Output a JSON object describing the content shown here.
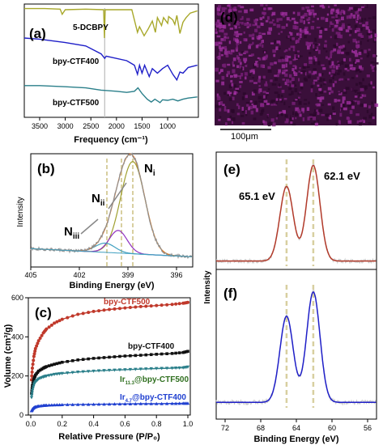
{
  "panel_labels": {
    "a": "(a)",
    "b": "(b)",
    "c": "(c)",
    "d": "(d)",
    "e": "(e)",
    "f": "(f)"
  },
  "d_scale_label": "100μm",
  "colors": {
    "olive": "#a8a82a",
    "blue": "#1f1fc8",
    "teal": "#2a7f8a",
    "red": "#b23a2a",
    "map_dark": "#3a0f3a",
    "map_bright": "#a030a0"
  },
  "chart_data": [
    {
      "id": "a",
      "type": "line",
      "xlabel": "Frequency (cm⁻¹)",
      "ylabel": "",
      "xlim": [
        3800,
        400
      ],
      "x_ticks": [
        3500,
        3000,
        2500,
        2000,
        1500,
        1000
      ],
      "marker_line_x": 2230,
      "series": [
        {
          "name": "5-DCBPY",
          "color": "#a8a82a",
          "x": [
            3800,
            3400,
            3100,
            3060,
            3000,
            2600,
            2250,
            2235,
            2220,
            1700,
            1590,
            1550,
            1460,
            1380,
            1300,
            1240,
            1200,
            1120,
            1080,
            1000,
            980,
            900,
            860,
            820,
            760,
            700,
            640,
            560,
            420
          ],
          "y": [
            9.6,
            9.6,
            9.55,
            9.1,
            9.5,
            9.55,
            9.5,
            7.0,
            9.5,
            9.5,
            7.5,
            8.0,
            7.2,
            7.8,
            8.5,
            7.5,
            8.8,
            8.1,
            8.8,
            8.3,
            8.9,
            8.6,
            8.2,
            9.0,
            7.4,
            8.4,
            8.8,
            9.2,
            9.4
          ]
        },
        {
          "name": "bpy-CTF400",
          "color": "#1f1fc8",
          "x": [
            3800,
            3500,
            3000,
            2600,
            2300,
            2230,
            2200,
            1800,
            1650,
            1590,
            1550,
            1500,
            1450,
            1360,
            1300,
            1200,
            1100,
            1000,
            900,
            820,
            760,
            700,
            600,
            420
          ],
          "y": [
            7.0,
            6.9,
            6.6,
            6.3,
            5.6,
            5.2,
            5.4,
            5.0,
            4.6,
            3.8,
            4.6,
            3.9,
            4.6,
            3.6,
            4.3,
            3.9,
            4.3,
            4.6,
            3.8,
            3.3,
            4.0,
            3.9,
            4.4,
            4.6
          ]
        },
        {
          "name": "bpy-CTF500",
          "color": "#2a7f8a",
          "x": [
            3800,
            3500,
            3000,
            2600,
            2300,
            2000,
            1800,
            1650,
            1580,
            1500,
            1400,
            1320,
            1250,
            1150,
            1100,
            1000,
            900,
            800,
            700,
            600,
            420
          ],
          "y": [
            2.8,
            2.8,
            2.7,
            2.6,
            2.4,
            2.3,
            2.2,
            2.3,
            2.6,
            2.1,
            1.6,
            1.35,
            1.6,
            1.3,
            1.55,
            1.5,
            1.6,
            1.45,
            1.6,
            1.7,
            1.8
          ]
        }
      ]
    },
    {
      "id": "b",
      "type": "line",
      "xlabel": "Binding Energy (eV)",
      "ylabel": "Intensity",
      "xlim": [
        405,
        395
      ],
      "ylim": [
        0,
        1.05
      ],
      "x_ticks": [
        405,
        402,
        399,
        396
      ],
      "dashed_x": [
        400.3,
        399.4,
        398.7
      ],
      "peak_labels": [
        {
          "main": "N",
          "sub": "i"
        },
        {
          "main": "N",
          "sub": "ii"
        },
        {
          "main": "N",
          "sub": "iii"
        }
      ],
      "series": [
        {
          "name": "N_i",
          "color": "#a0a030",
          "center": 398.7,
          "amplitude": 0.9,
          "width": 0.75
        },
        {
          "name": "N_ii",
          "color": "#9030c0",
          "center": 399.6,
          "amplitude": 0.22,
          "width": 0.55
        },
        {
          "name": "N_iii",
          "color": "#40a0c0",
          "center": 400.4,
          "amplitude": 0.09,
          "width": 0.6
        },
        {
          "name": "fit",
          "color": "#e07020",
          "sum": true
        },
        {
          "name": "raw",
          "color": "#909090",
          "sum": true,
          "noise": true
        }
      ]
    },
    {
      "id": "c",
      "type": "scatter",
      "xlabel": "Relative Pressure (P/P₀)",
      "ylabel": "Volume (cm³/g)",
      "xlim": [
        0,
        1.0
      ],
      "ylim": [
        0,
        600
      ],
      "x_ticks": [
        0.0,
        0.2,
        0.4,
        0.6,
        0.8,
        1.0
      ],
      "y_ticks": [
        0,
        200,
        400,
        600
      ],
      "series": [
        {
          "name": "bpy-CTF500",
          "label": {
            "main": "bpy-CTF500",
            "sub": ""
          },
          "color": "#c0392b",
          "label_color": "#c0392b",
          "x": [
            0.005,
            0.01,
            0.02,
            0.03,
            0.05,
            0.08,
            0.1,
            0.15,
            0.2,
            0.3,
            0.4,
            0.5,
            0.6,
            0.7,
            0.8,
            0.9,
            0.97,
            1.0
          ],
          "y": [
            180,
            240,
            300,
            340,
            380,
            420,
            440,
            470,
            490,
            515,
            530,
            540,
            548,
            555,
            560,
            566,
            572,
            576
          ]
        },
        {
          "name": "bpy-CTF400",
          "label": {
            "main": "bpy-CTF400",
            "sub": ""
          },
          "color": "#111111",
          "label_color": "#111111",
          "x": [
            0.005,
            0.01,
            0.02,
            0.03,
            0.05,
            0.08,
            0.1,
            0.15,
            0.2,
            0.3,
            0.4,
            0.5,
            0.6,
            0.7,
            0.8,
            0.9,
            0.97,
            1.0
          ],
          "y": [
            110,
            150,
            185,
            205,
            225,
            240,
            248,
            260,
            270,
            282,
            290,
            296,
            302,
            306,
            311,
            315,
            320,
            326
          ]
        },
        {
          "name": "Ir11.3@bpy-CTF500",
          "label": {
            "main": "Ir",
            "sub": "11.3",
            "rest": "@bpy-CTF500"
          },
          "color": "#2a7f8a",
          "label_color": "#2f6f1f",
          "x": [
            0.005,
            0.01,
            0.02,
            0.03,
            0.05,
            0.08,
            0.1,
            0.15,
            0.2,
            0.3,
            0.4,
            0.5,
            0.6,
            0.7,
            0.8,
            0.9,
            0.97,
            1.0
          ],
          "y": [
            90,
            125,
            155,
            170,
            185,
            195,
            200,
            208,
            213,
            220,
            225,
            229,
            232,
            235,
            238,
            240,
            242,
            246
          ]
        },
        {
          "name": "Ir4.7@bpy-CTF400",
          "label": {
            "main": "Ir",
            "sub": "4.7",
            "rest": "@bpy-CTF400"
          },
          "color": "#2040d0",
          "label_color": "#2040d0",
          "x": [
            0.005,
            0.01,
            0.02,
            0.03,
            0.05,
            0.08,
            0.1,
            0.15,
            0.2,
            0.3,
            0.4,
            0.5,
            0.6,
            0.7,
            0.8,
            0.9,
            0.97,
            1.0
          ],
          "y": [
            22,
            30,
            38,
            42,
            46,
            49,
            50,
            52,
            53,
            54,
            55,
            56,
            57,
            58,
            58,
            59,
            60,
            60
          ]
        }
      ]
    },
    {
      "id": "e",
      "type": "line",
      "xlabel": "Binding Energy (eV)",
      "ylabel": "Intensity",
      "xlim": [
        73,
        55
      ],
      "ylim": [
        0,
        1.1
      ],
      "x_ticks": [
        72,
        68,
        64,
        60,
        56
      ],
      "dashed_x": [
        65.1,
        62.1
      ],
      "peak_labels": [
        {
          "main": "65.1 eV",
          "x": 65.1
        },
        {
          "main": "62.1 eV",
          "x": 62.1
        }
      ],
      "series": [
        {
          "name": "e-fit",
          "color": "#b23a2a",
          "peaks": [
            {
              "center": 65.1,
              "amplitude": 0.78,
              "width": 0.75
            },
            {
              "center": 62.1,
              "amplitude": 1.0,
              "width": 0.75
            }
          ]
        }
      ]
    },
    {
      "id": "f",
      "type": "line",
      "xlabel": "Binding Energy (eV)",
      "ylabel": "",
      "xlim": [
        73,
        55
      ],
      "ylim": [
        0,
        1.1
      ],
      "x_ticks": [
        72,
        68,
        64,
        60,
        56
      ],
      "dashed_x": [
        65.1,
        62.1
      ],
      "series": [
        {
          "name": "f-fit",
          "color": "#1f1fc8",
          "peaks": [
            {
              "center": 65.1,
              "amplitude": 0.78,
              "width": 0.75
            },
            {
              "center": 62.1,
              "amplitude": 1.0,
              "width": 0.75
            }
          ]
        }
      ]
    }
  ]
}
